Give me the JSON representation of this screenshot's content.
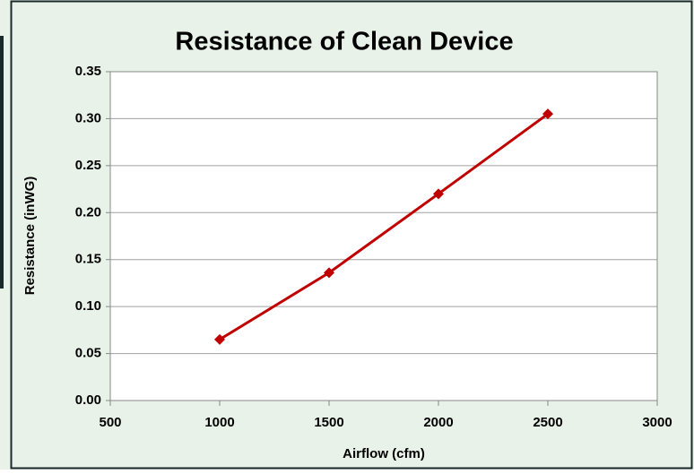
{
  "chart_data": {
    "type": "line",
    "title": "Resistance of Clean Device",
    "xlabel": "Airflow (cfm)",
    "ylabel": "Resistance (inWG)",
    "x": [
      1000,
      1500,
      2000,
      2500
    ],
    "series": [
      {
        "name": "Resistance",
        "color": "#c00000",
        "values": [
          0.065,
          0.136,
          0.22,
          0.305
        ]
      }
    ],
    "xlim": [
      500,
      3000
    ],
    "xticks": [
      500,
      1000,
      1500,
      2000,
      2500,
      3000
    ],
    "ylim": [
      0,
      0.35
    ],
    "yticks": [
      {
        "value": 0,
        "label": "0.00"
      },
      {
        "value": 0.05,
        "label": "0.05"
      },
      {
        "value": 0.1,
        "label": "0.10"
      },
      {
        "value": 0.15,
        "label": "0.15"
      },
      {
        "value": 0.2,
        "label": "0.20"
      },
      {
        "value": 0.25,
        "label": "0.25"
      },
      {
        "value": 0.3,
        "label": "0.30"
      },
      {
        "value": 0.35,
        "label": "0.35"
      }
    ],
    "grid": true
  }
}
